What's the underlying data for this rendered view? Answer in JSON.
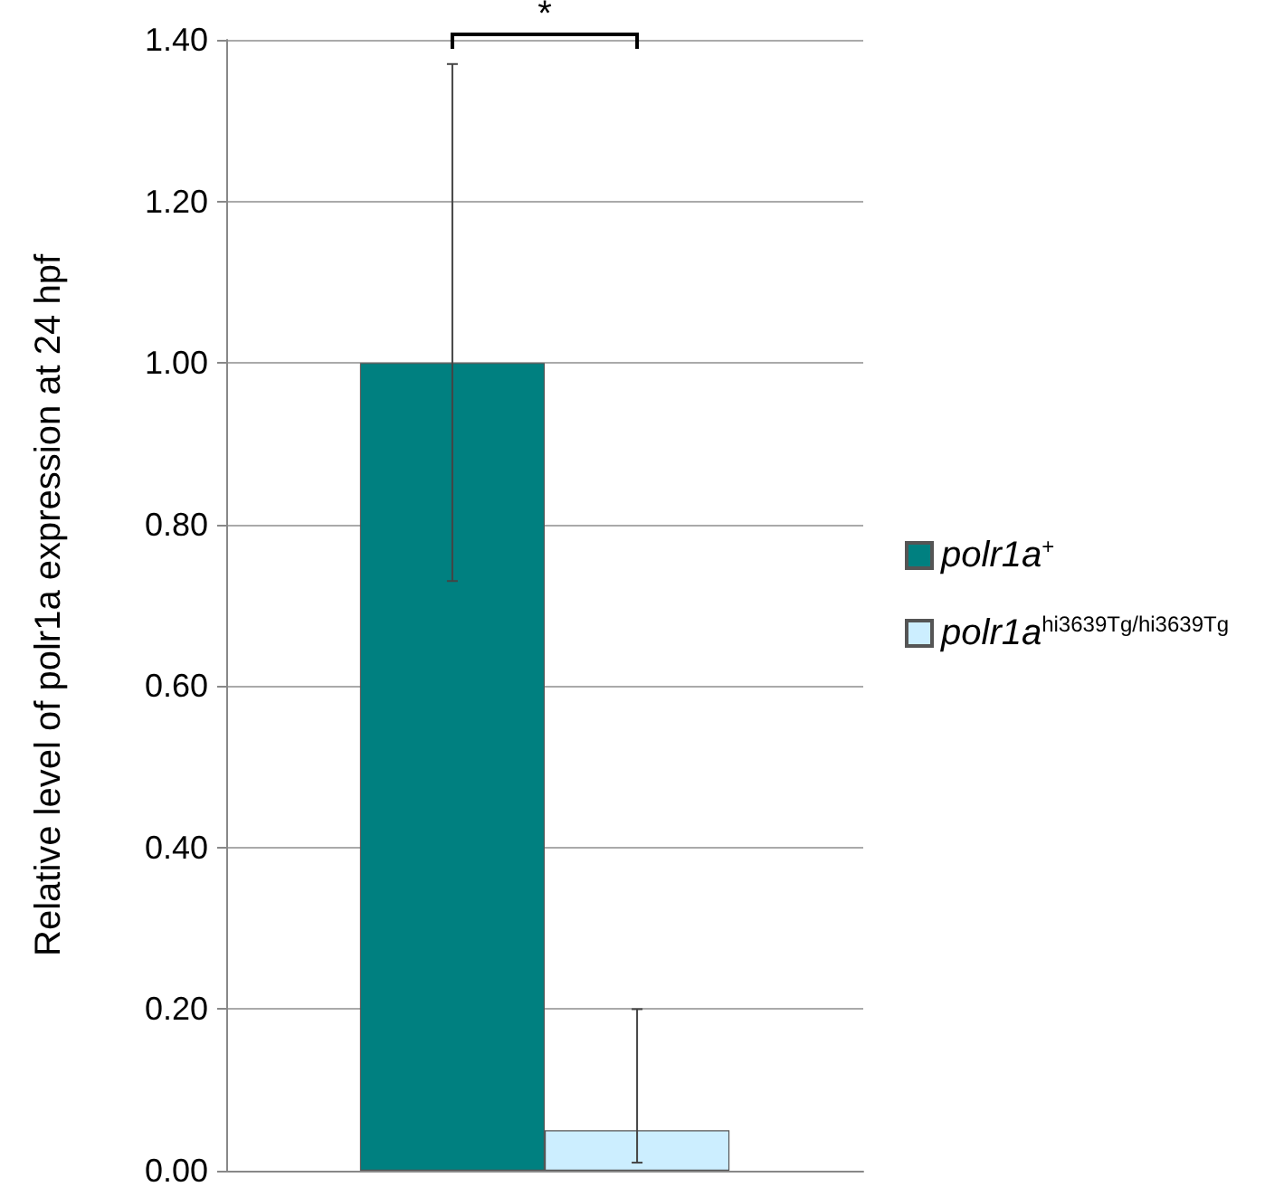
{
  "chart_data": {
    "type": "bar",
    "ylabel": "Relative level of polr1a expression at 24 hpf",
    "categories": [
      null
    ],
    "series": [
      {
        "name": "polr1a$^{+}$",
        "color": "#008080",
        "values": [
          1.0
        ],
        "errors": [
          [
            0.73,
            1.37
          ]
        ]
      },
      {
        "name": "polr1a$^{hi3639Tg/hi3639Tg}$",
        "color": "#cceeff",
        "values": [
          0.05
        ],
        "errors": [
          [
            0.01,
            0.2
          ]
        ]
      }
    ],
    "ylim": [
      0,
      1.4
    ],
    "yticks": [
      {
        "value": 0,
        "label": "0.00"
      },
      {
        "value": 0.2,
        "label": "0.20"
      },
      {
        "value": 0.4,
        "label": "0.40"
      },
      {
        "value": 0.6,
        "label": "0.60"
      },
      {
        "value": 0.8,
        "label": "0.80"
      },
      {
        "value": 1.0,
        "label": "1.00"
      },
      {
        "value": 1.2,
        "label": "1.20"
      },
      {
        "value": 1.4,
        "label": "1.40"
      }
    ],
    "grid": "y",
    "legend": "right",
    "annotations": [
      "*"
    ]
  }
}
